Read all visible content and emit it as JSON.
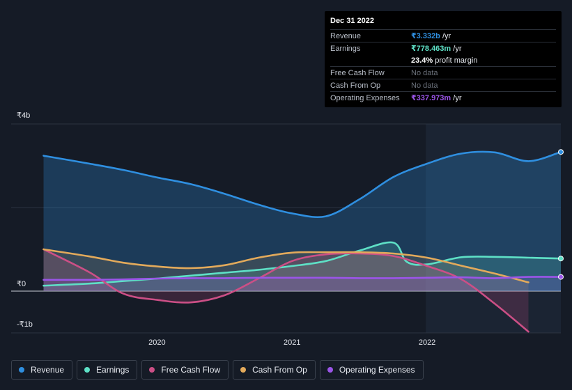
{
  "tooltip": {
    "date": "Dec 31 2022",
    "rows": [
      {
        "label": "Revenue",
        "value": "₹3.332b",
        "unit": " /yr",
        "color": "#2f8fe0"
      },
      {
        "label": "Earnings",
        "value": "₹778.463m",
        "unit": " /yr",
        "color": "#5ee0c6"
      },
      {
        "label": "",
        "value": "23.4%",
        "unit": " profit margin",
        "color": "#ffffff"
      },
      {
        "label": "Free Cash Flow",
        "value": "No data",
        "unit": "",
        "color": "#6b717b"
      },
      {
        "label": "Cash From Op",
        "value": "No data",
        "unit": "",
        "color": "#6b717b"
      },
      {
        "label": "Operating Expenses",
        "value": "₹337.973m",
        "unit": " /yr",
        "color": "#9b55e8"
      }
    ]
  },
  "legend": [
    {
      "label": "Revenue",
      "color": "#2f8fe0"
    },
    {
      "label": "Earnings",
      "color": "#5ee0c6"
    },
    {
      "label": "Free Cash Flow",
      "color": "#cc4f86"
    },
    {
      "label": "Cash From Op",
      "color": "#e3aa5b"
    },
    {
      "label": "Operating Expenses",
      "color": "#9b55e8"
    }
  ],
  "chart_data": {
    "type": "area",
    "ylim": [
      -1,
      4
    ],
    "yticks": [
      {
        "value": 4,
        "label": "₹4b"
      },
      {
        "value": 0,
        "label": "₹0"
      },
      {
        "value": -1,
        "label": "-₹1b"
      }
    ],
    "xticks": [
      {
        "value": 2020,
        "label": "2020"
      },
      {
        "value": 2021,
        "label": "2021"
      },
      {
        "value": 2022,
        "label": "2022"
      }
    ],
    "xlim": [
      2018.92,
      2022.99
    ],
    "forecast_start": 2021.99,
    "unit": "₹ billions",
    "series": [
      {
        "name": "Revenue",
        "color": "#2f8fe0",
        "fill": true,
        "x": [
          2019.16,
          2019.5,
          2019.75,
          2020.0,
          2020.25,
          2020.5,
          2020.75,
          2021.0,
          2021.25,
          2021.5,
          2021.75,
          2022.0,
          2022.25,
          2022.5,
          2022.75,
          2022.99
        ],
        "y": [
          3.24,
          3.05,
          2.9,
          2.72,
          2.56,
          2.33,
          2.07,
          1.86,
          1.79,
          2.2,
          2.73,
          3.05,
          3.29,
          3.32,
          3.11,
          3.33
        ]
      },
      {
        "name": "Earnings",
        "color": "#5ee0c6",
        "fill": true,
        "x": [
          2019.16,
          2019.5,
          2019.75,
          2020.0,
          2020.25,
          2020.5,
          2020.75,
          2021.0,
          2021.25,
          2021.5,
          2021.75,
          2021.85,
          2022.0,
          2022.25,
          2022.5,
          2022.75,
          2022.99
        ],
        "y": [
          0.13,
          0.18,
          0.24,
          0.3,
          0.37,
          0.44,
          0.51,
          0.6,
          0.72,
          0.97,
          1.16,
          0.7,
          0.64,
          0.81,
          0.82,
          0.8,
          0.78
        ]
      },
      {
        "name": "Free Cash Flow",
        "color": "#cc4f86",
        "fill": true,
        "x": [
          2019.16,
          2019.5,
          2019.75,
          2020.0,
          2020.25,
          2020.5,
          2020.75,
          2021.0,
          2021.25,
          2021.5,
          2021.75,
          2022.0,
          2022.25,
          2022.5,
          2022.75
        ],
        "y": [
          1.0,
          0.45,
          -0.06,
          -0.21,
          -0.27,
          -0.1,
          0.3,
          0.72,
          0.88,
          0.9,
          0.84,
          0.6,
          0.29,
          -0.3,
          -0.97
        ]
      },
      {
        "name": "Cash From Op",
        "color": "#e3aa5b",
        "fill": true,
        "x": [
          2019.16,
          2019.5,
          2019.75,
          2020.0,
          2020.25,
          2020.5,
          2020.75,
          2021.0,
          2021.25,
          2021.5,
          2021.75,
          2022.0,
          2022.25,
          2022.5,
          2022.75
        ],
        "y": [
          1.0,
          0.83,
          0.68,
          0.59,
          0.55,
          0.62,
          0.8,
          0.92,
          0.93,
          0.93,
          0.9,
          0.8,
          0.61,
          0.42,
          0.21
        ]
      },
      {
        "name": "Operating Expenses",
        "color": "#9b55e8",
        "fill": true,
        "x": [
          2019.16,
          2019.5,
          2019.75,
          2020.0,
          2020.25,
          2020.5,
          2020.75,
          2021.0,
          2021.25,
          2021.5,
          2021.75,
          2022.0,
          2022.25,
          2022.5,
          2022.75,
          2022.99
        ],
        "y": [
          0.27,
          0.27,
          0.28,
          0.3,
          0.31,
          0.31,
          0.32,
          0.32,
          0.32,
          0.31,
          0.31,
          0.32,
          0.33,
          0.31,
          0.34,
          0.34
        ]
      }
    ]
  }
}
